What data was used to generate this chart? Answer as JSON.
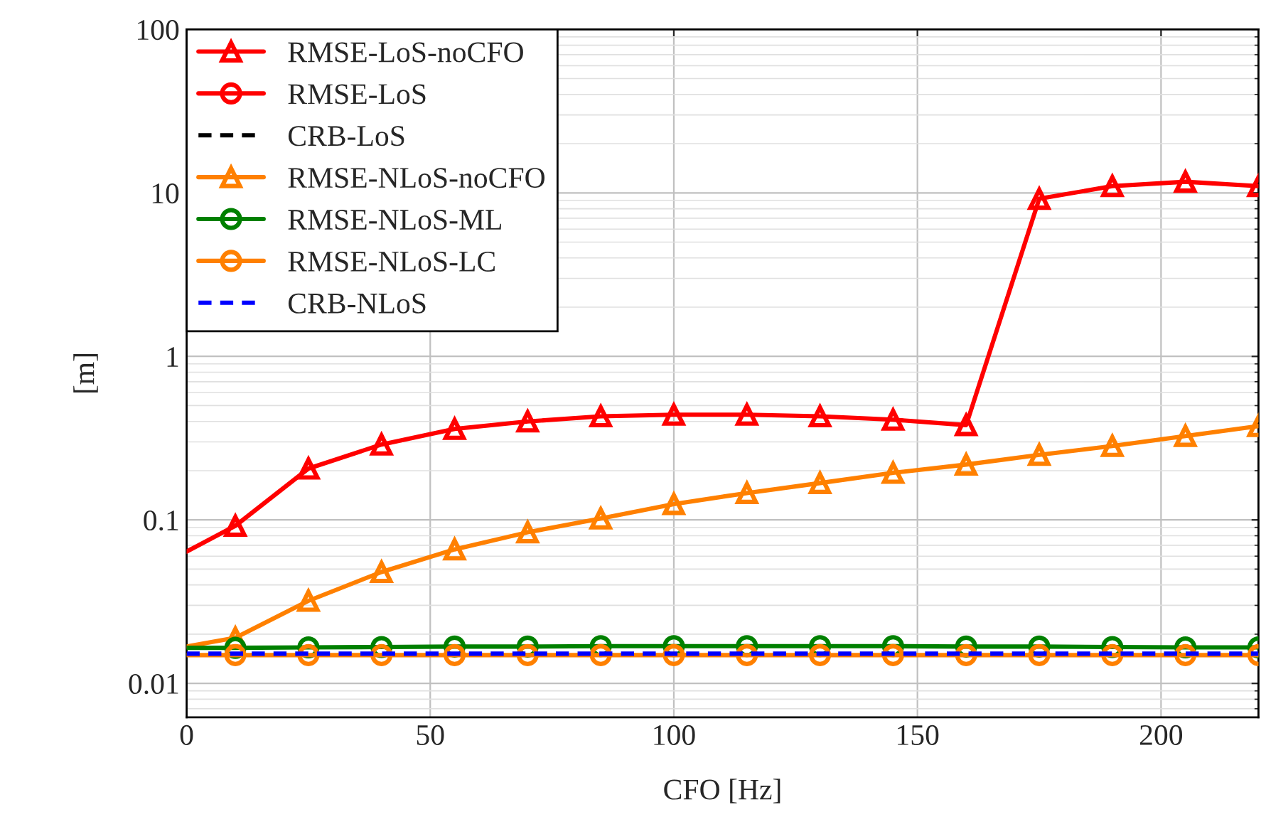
{
  "chart_data": {
    "type": "line",
    "xlabel": "CFO [Hz]",
    "ylabel": "[m]",
    "x": [
      0,
      10,
      25,
      40,
      55,
      70,
      85,
      100,
      115,
      130,
      145,
      160,
      175,
      190,
      205,
      220
    ],
    "xlim": [
      0,
      220
    ],
    "xticks": [
      0,
      50,
      100,
      150,
      200
    ],
    "ylim": [
      0.0062,
      100
    ],
    "yticks": [
      0.01,
      0.1,
      1,
      10,
      100
    ],
    "log": "y",
    "grid": true,
    "legend": "top left",
    "series": [
      {
        "name": "RMSE-LoS-noCFO",
        "color": "#ff0000",
        "marker": "triangle",
        "line_style": "solid",
        "values": [
          0.064,
          0.092,
          0.206,
          0.289,
          0.36,
          0.4,
          0.43,
          0.44,
          0.44,
          0.43,
          0.41,
          0.38,
          9.2,
          11.0,
          11.7,
          11.0
        ]
      },
      {
        "name": "RMSE-LoS",
        "color": "#ff0000",
        "marker": "circle",
        "line_style": "solid",
        "values": [
          null,
          null,
          null,
          null,
          null,
          null,
          null,
          null,
          null,
          null,
          null,
          null,
          null,
          null,
          null,
          null
        ]
      },
      {
        "name": "CRB-LoS",
        "color": "#000000",
        "line_style": "dashed",
        "values": [
          null,
          null,
          null,
          null,
          null,
          null,
          null,
          null,
          null,
          null,
          null,
          null,
          null,
          null,
          null,
          null
        ]
      },
      {
        "name": "RMSE-NLoS-noCFO",
        "color": "#ff8000",
        "marker": "triangle",
        "line_style": "solid",
        "values": [
          0.0168,
          0.019,
          0.032,
          0.048,
          0.066,
          0.084,
          0.102,
          0.125,
          0.146,
          0.168,
          0.194,
          0.218,
          0.25,
          0.283,
          0.326,
          0.375
        ]
      },
      {
        "name": "RMSE-NLoS-ML",
        "color": "#008000",
        "marker": "circle",
        "line_style": "solid",
        "values": [
          0.0165,
          0.0165,
          0.0166,
          0.0167,
          0.0168,
          0.0168,
          0.0169,
          0.0169,
          0.0169,
          0.0169,
          0.0169,
          0.0168,
          0.0168,
          0.0167,
          0.0166,
          0.0166
        ]
      },
      {
        "name": "RMSE-NLoS-LC",
        "color": "#ff8000",
        "marker": "circle",
        "line_style": "solid",
        "values": [
          0.0149,
          0.0149,
          0.0149,
          0.0149,
          0.0149,
          0.0149,
          0.0149,
          0.0149,
          0.0149,
          0.0149,
          0.0149,
          0.0149,
          0.0149,
          0.0149,
          0.0149,
          0.0149
        ]
      },
      {
        "name": "CRB-NLoS",
        "color": "#0000ff",
        "line_style": "dashed",
        "values": [
          0.0152,
          0.0152,
          0.0152,
          0.0152,
          0.0152,
          0.0152,
          0.0152,
          0.0152,
          0.0152,
          0.0152,
          0.0152,
          0.0152,
          0.0152,
          0.0152,
          0.0152,
          0.0152
        ]
      }
    ]
  }
}
